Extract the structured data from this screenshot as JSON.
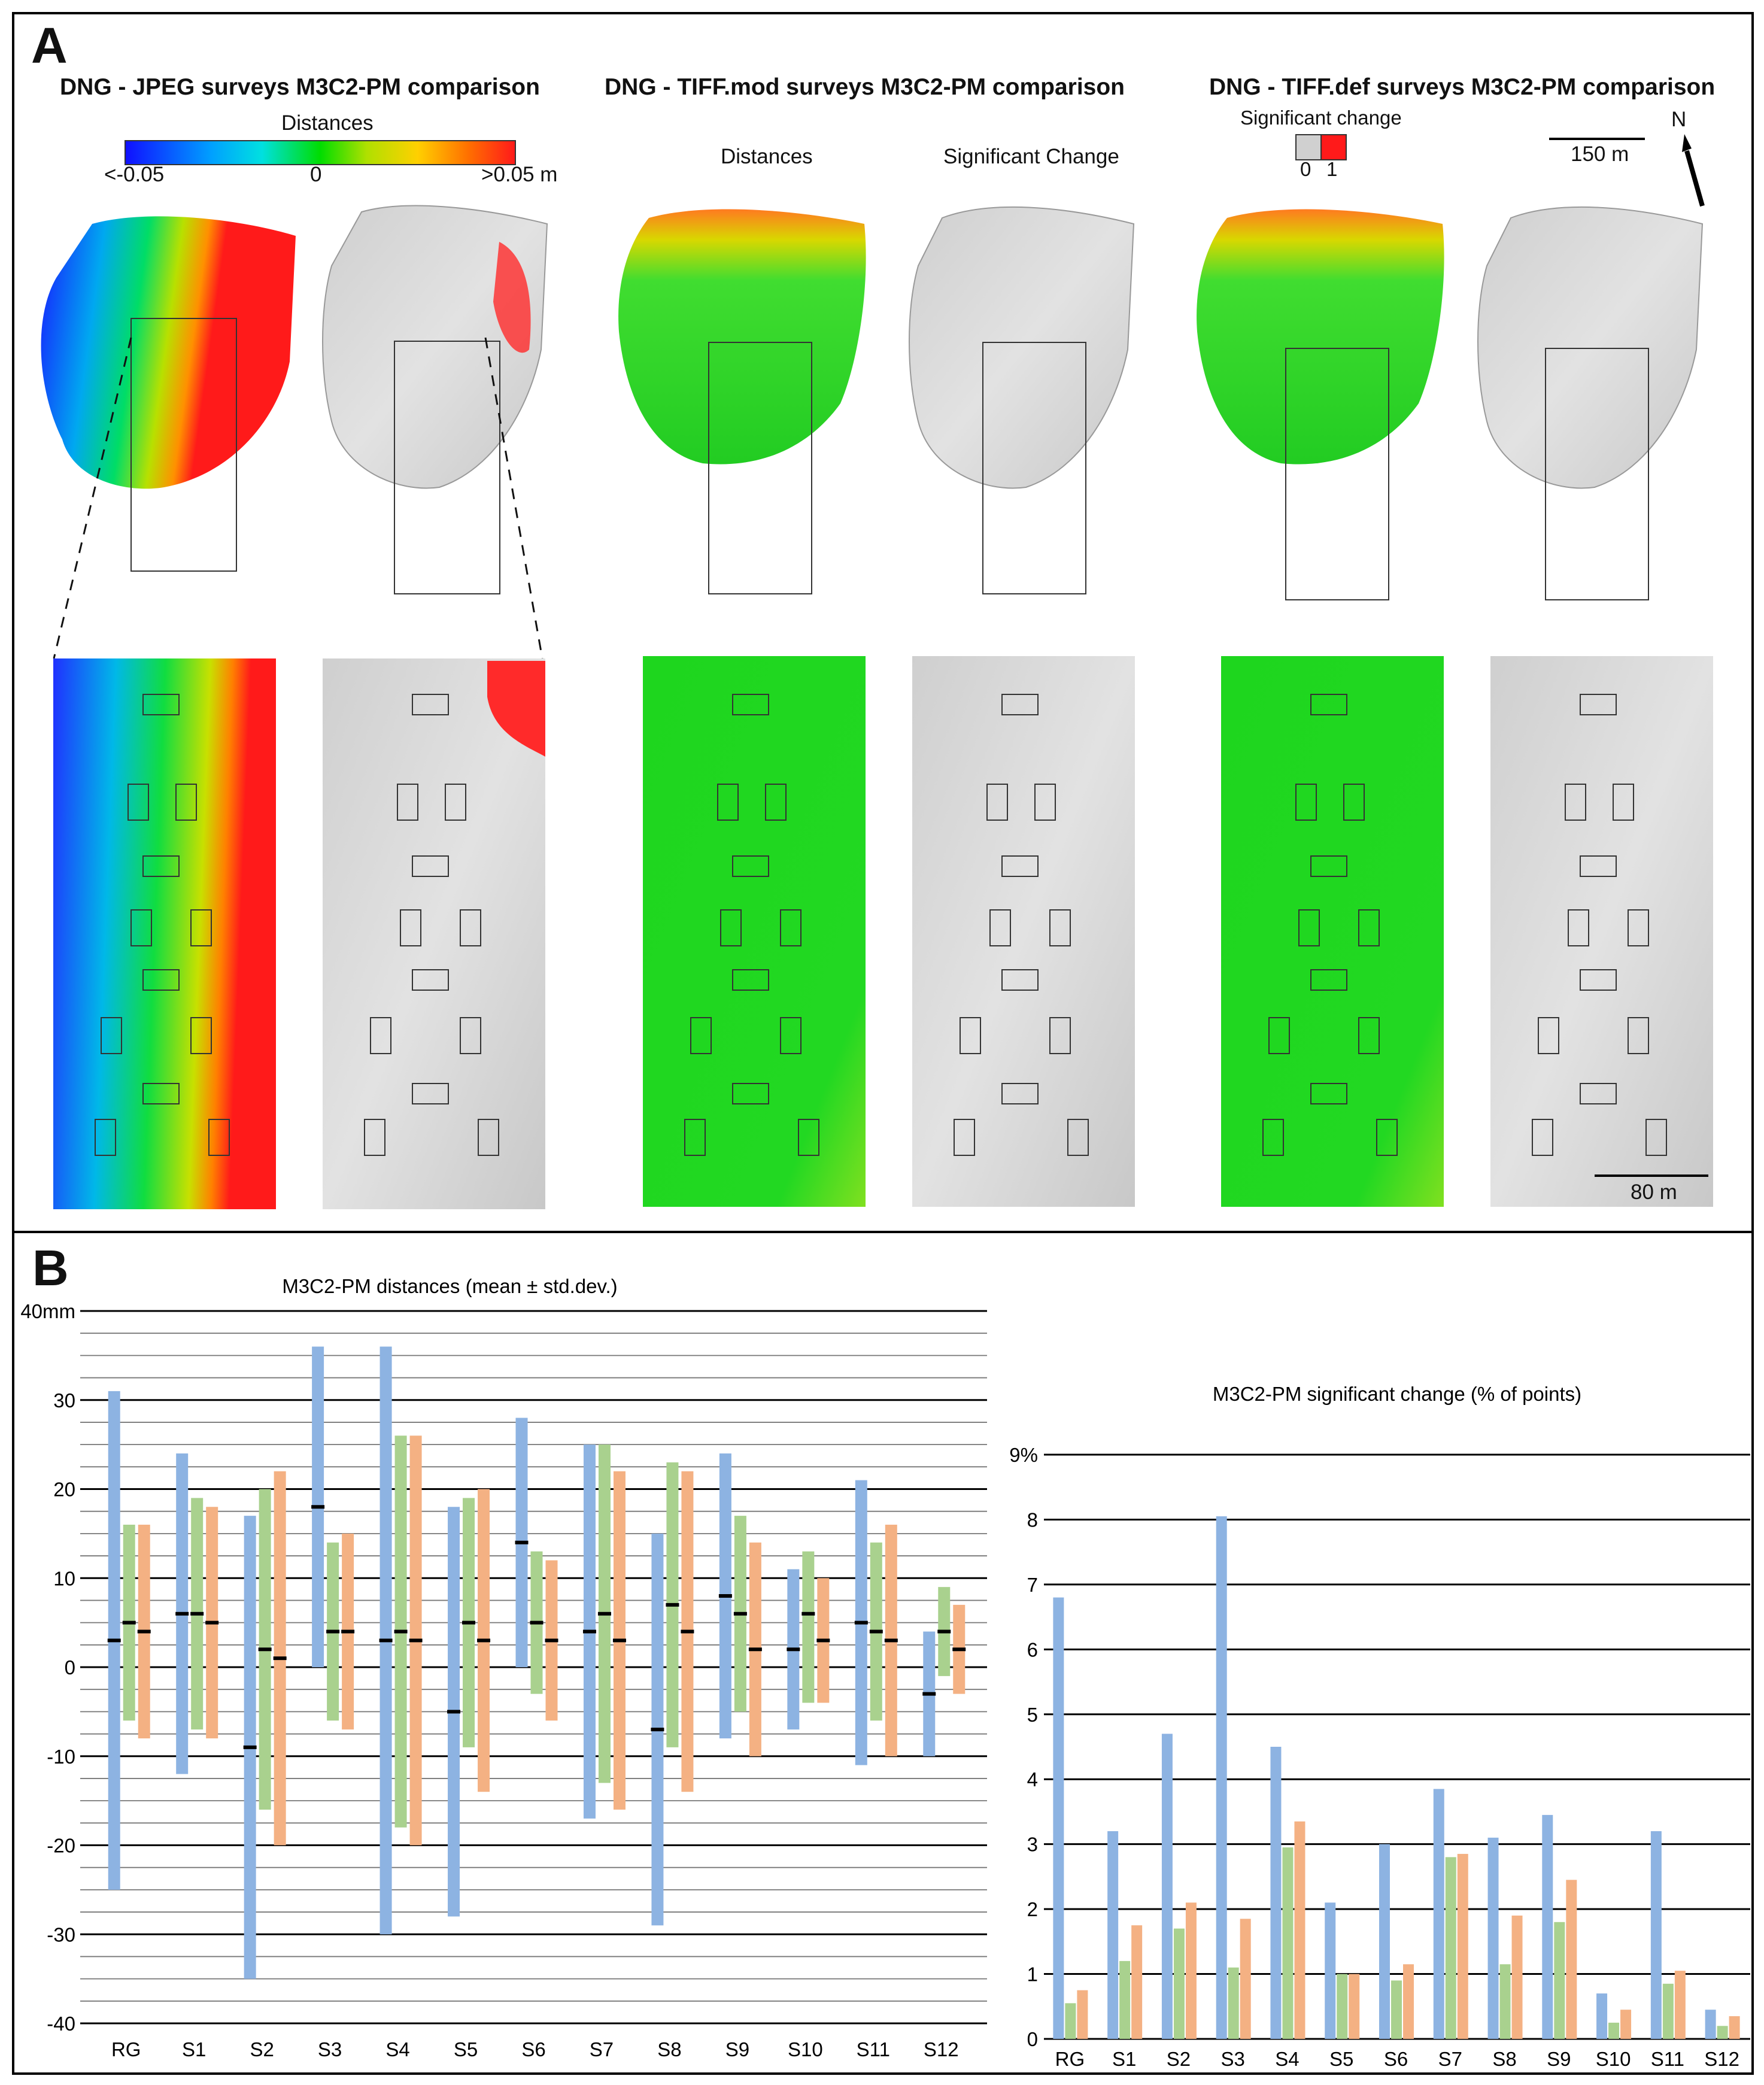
{
  "panel_a": {
    "label": "A",
    "titles": [
      "DNG - JPEG surveys M3C2-PM comparison",
      "DNG - TIFF.mod surveys M3C2-PM comparison",
      "DNG - TIFF.def surveys M3C2-PM comparison"
    ],
    "colorbar": {
      "title": "Distances",
      "min_label": "<-0.05",
      "mid_label": "0",
      "max_label": ">0.05 m"
    },
    "col_labels": {
      "distances": "Distances",
      "significant": "Significant  Change"
    },
    "sig_legend": {
      "title": "Significant change",
      "zero": "0",
      "one": "1",
      "zero_color": "#d0d0d0",
      "one_color": "#ff1a1a"
    },
    "scale_top": "150 m",
    "scale_bottom": "80 m",
    "north": "N"
  },
  "panel_b": {
    "label": "B"
  },
  "chart_data": [
    {
      "type": "bar",
      "title": "M3C2-PM distances (mean ± std.dev.)",
      "ylabel": "",
      "ylim": [
        -40,
        40
      ],
      "y_ticks": [
        -40,
        -30,
        -20,
        -10,
        0,
        10,
        20,
        30,
        40
      ],
      "y_tick_labels": [
        "-40",
        "-30",
        "-20",
        "-10",
        "0",
        "10",
        "20",
        "30",
        "40mm"
      ],
      "categories": [
        "RG",
        "S1",
        "S2",
        "S3",
        "S4",
        "S5",
        "S6",
        "S7",
        "S8",
        "S9",
        "S10",
        "S11",
        "S12"
      ],
      "series": [
        {
          "name": "DNG - JPEG",
          "color": "#8db3e2",
          "low": [
            -25,
            -12,
            -35,
            0,
            -30,
            -28,
            0,
            -17,
            -29,
            -8,
            -7,
            -11,
            -10
          ],
          "high": [
            31,
            24,
            17,
            36,
            36,
            18,
            28,
            25,
            15,
            24,
            11,
            21,
            4
          ],
          "mean": [
            3,
            6,
            -9,
            18,
            3,
            -5,
            14,
            4,
            -7,
            8,
            2,
            5,
            -3
          ]
        },
        {
          "name": "DNG - TIFF.mod",
          "color": "#a9d18e",
          "low": [
            -6,
            -7,
            -16,
            -6,
            -18,
            -9,
            -3,
            -13,
            -9,
            -5,
            -4,
            -6,
            -1
          ],
          "high": [
            16,
            19,
            20,
            14,
            26,
            19,
            13,
            25,
            23,
            17,
            13,
            14,
            9
          ],
          "mean": [
            5,
            6,
            2,
            4,
            4,
            5,
            5,
            6,
            7,
            6,
            6,
            4,
            4
          ]
        },
        {
          "name": "DNG - TIFF.def",
          "color": "#f4b183",
          "low": [
            -8,
            -8,
            -20,
            -7,
            -20,
            -14,
            -6,
            -16,
            -14,
            -10,
            -4,
            -10,
            -3
          ],
          "high": [
            16,
            18,
            22,
            15,
            26,
            20,
            12,
            22,
            22,
            14,
            10,
            16,
            7
          ],
          "mean": [
            4,
            5,
            1,
            4,
            3,
            3,
            3,
            3,
            4,
            2,
            3,
            3,
            2
          ]
        }
      ]
    },
    {
      "type": "bar",
      "title": "M3C2-PM significant change (% of points)",
      "ylim": [
        0,
        9
      ],
      "y_ticks": [
        0,
        1,
        2,
        3,
        4,
        5,
        6,
        7,
        8,
        9
      ],
      "y_tick_labels": [
        "0",
        "1",
        "2",
        "3",
        "4",
        "5",
        "6",
        "7",
        "8",
        "9%"
      ],
      "categories": [
        "RG",
        "S1",
        "S2",
        "S3",
        "S4",
        "S5",
        "S6",
        "S7",
        "S8",
        "S9",
        "S10",
        "S11",
        "S12"
      ],
      "legend_position": "bottom",
      "series": [
        {
          "name": "DNG - JPEG",
          "color": "#8db3e2",
          "values": [
            6.8,
            3.2,
            4.7,
            8.05,
            4.5,
            2.1,
            3.0,
            3.85,
            3.1,
            3.45,
            0.7,
            3.2,
            0.45
          ]
        },
        {
          "name": "DNG - TIFF.mod",
          "color": "#a9d18e",
          "values": [
            0.55,
            1.2,
            1.7,
            1.1,
            2.95,
            1.0,
            0.9,
            2.8,
            1.15,
            1.8,
            0.25,
            0.85,
            0.2
          ]
        },
        {
          "name": "DNG - TIFF.def",
          "color": "#f4b183",
          "values": [
            0.75,
            1.75,
            2.1,
            1.85,
            3.35,
            1.0,
            1.15,
            2.85,
            1.9,
            2.45,
            0.45,
            1.05,
            0.35
          ]
        }
      ]
    }
  ]
}
